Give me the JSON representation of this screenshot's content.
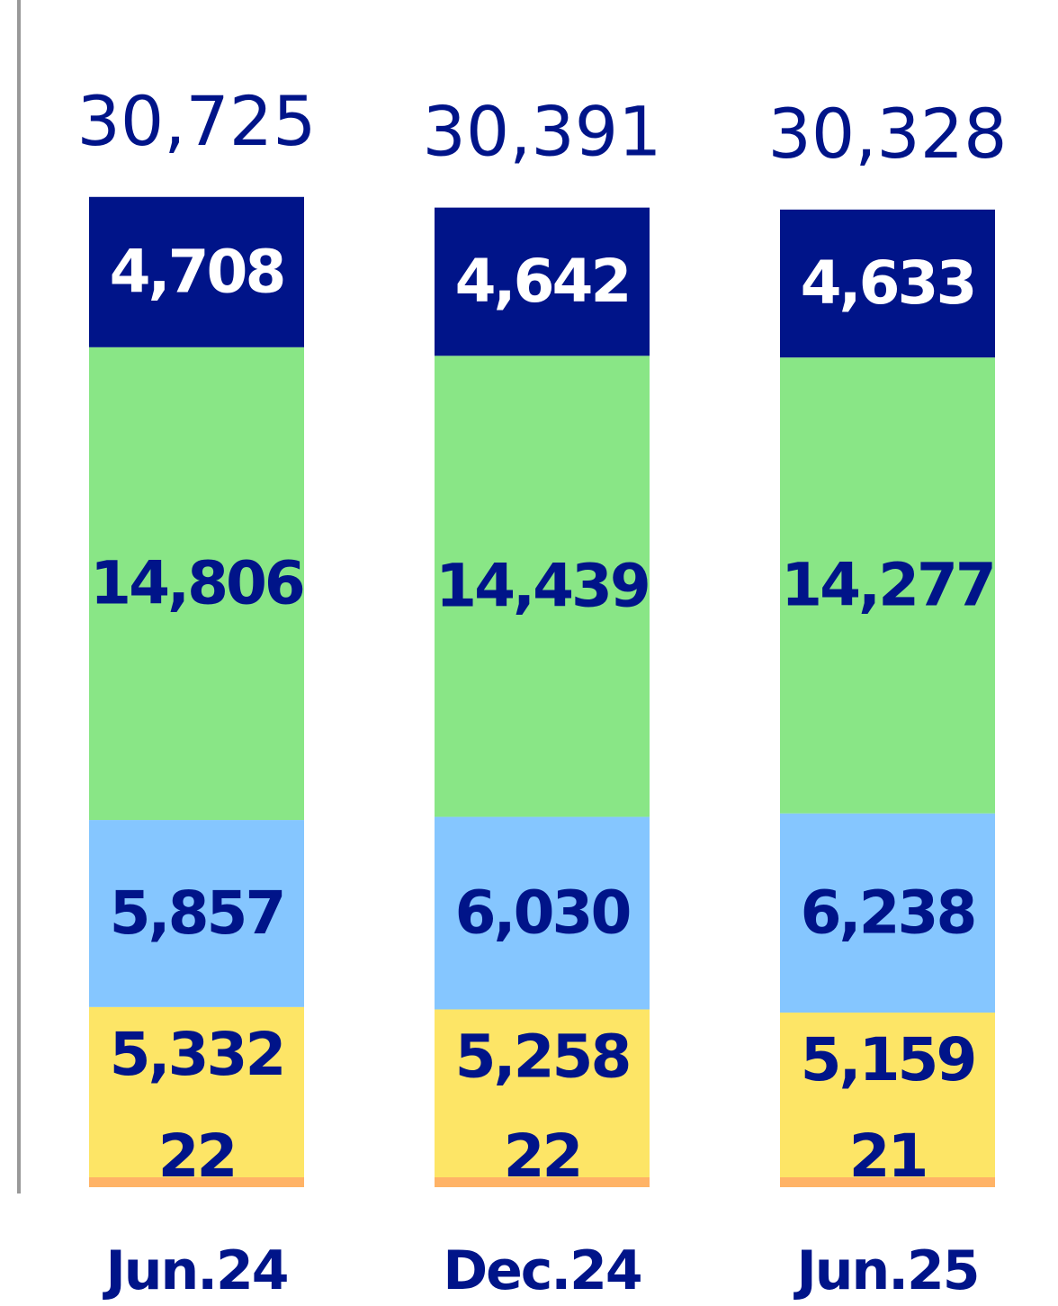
{
  "chart_data": {
    "type": "bar",
    "stacked": true,
    "categories": [
      "Jun.24",
      "Dec.24",
      "Jun.25"
    ],
    "totals": [
      "30,725",
      "30,391",
      "30,328"
    ],
    "series": [
      {
        "values": [
          22,
          22,
          21
        ],
        "labels": [
          "22",
          "22",
          "21"
        ],
        "color": "#FFB366",
        "label_color": "#001489"
      },
      {
        "values": [
          5332,
          5258,
          5159
        ],
        "labels": [
          "5,332",
          "5,258",
          "5,159"
        ],
        "color": "#FDE566",
        "label_color": "#001489"
      },
      {
        "values": [
          5857,
          6030,
          6238
        ],
        "labels": [
          "5,857",
          "6,030",
          "6,238"
        ],
        "color": "#85C6FF",
        "label_color": "#001489"
      },
      {
        "values": [
          14806,
          14439,
          14277
        ],
        "labels": [
          "14,806",
          "14,439",
          "14,277"
        ],
        "color": "#89E686",
        "label_color": "#001489"
      },
      {
        "values": [
          4708,
          4642,
          4633
        ],
        "labels": [
          "4,708",
          "4,642",
          "4,633"
        ],
        "color": "#001489",
        "label_color": "#FFFFFF"
      }
    ],
    "total_color": "#001489",
    "category_color": "#001489",
    "axis_color": "#999999"
  }
}
